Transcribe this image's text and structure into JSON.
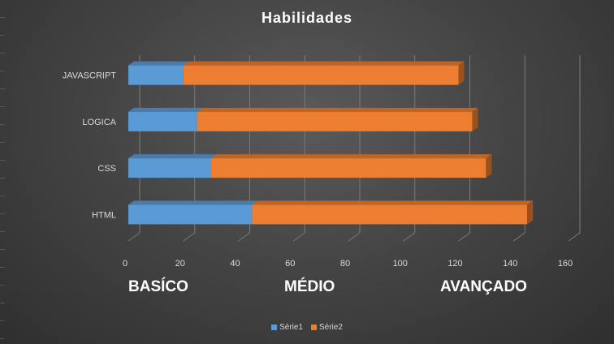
{
  "chart_data": {
    "type": "bar",
    "orientation": "horizontal",
    "stacked": true,
    "title": "Habilidades",
    "categories": [
      "HTML",
      "CSS",
      "LOGICA",
      "JAVASCRIPT"
    ],
    "series": [
      {
        "name": "Série1",
        "values": [
          45,
          30,
          25,
          20
        ],
        "color": "#5b9bd5"
      },
      {
        "name": "Série2",
        "values": [
          100,
          100,
          100,
          100
        ],
        "color": "#ed7d31"
      }
    ],
    "xlim": [
      0,
      160
    ],
    "xticks": [
      0,
      20,
      40,
      60,
      80,
      100,
      120,
      140,
      160
    ],
    "grid": true,
    "legend_position": "bottom",
    "band_labels": [
      "BASÍCO",
      "MÉDIO",
      "AVANÇADO"
    ]
  },
  "colors": {
    "background": "#3f3f3f",
    "gridline": "#7f7f7f",
    "text": "#d9d9d9"
  }
}
